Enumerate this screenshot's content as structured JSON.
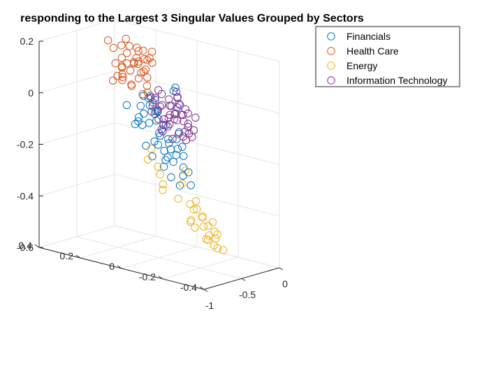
{
  "chart_data": {
    "type": "scatter",
    "title": "responding to the Largest 3 Singular Values Grouped by Sectors",
    "xlabel": "",
    "ylabel": "",
    "zlabel": "",
    "grid": true,
    "legend_placement": "top-right",
    "axes": {
      "x": {
        "range": [
          -1,
          0
        ],
        "ticks": [
          "-1",
          "-0.5",
          "0"
        ]
      },
      "y": {
        "range": [
          -0.4,
          0.4
        ],
        "ticks": [
          "-0.4",
          "-0.2",
          "0",
          "0.2",
          "0.4"
        ]
      },
      "z": {
        "range": [
          -0.6,
          0.2
        ],
        "ticks": [
          "-0.6",
          "-0.4",
          "-0.2",
          "0",
          "0.2"
        ]
      }
    },
    "series": [
      {
        "name": "Financials",
        "color": "#0072BD",
        "marker": "o",
        "points_xyz": [
          [
            -0.3,
            0.12,
            -0.05
          ],
          [
            -0.28,
            0.1,
            -0.07
          ],
          [
            -0.26,
            0.14,
            -0.03
          ],
          [
            -0.32,
            0.08,
            -0.1
          ],
          [
            -0.25,
            0.06,
            -0.12
          ],
          [
            -0.35,
            0.05,
            -0.15
          ],
          [
            -0.22,
            0.11,
            -0.08
          ],
          [
            -0.29,
            0.03,
            -0.18
          ],
          [
            -0.2,
            0.09,
            -0.13
          ],
          [
            -0.38,
            0.02,
            -0.2
          ],
          [
            -0.27,
            0.0,
            -0.16
          ],
          [
            -0.33,
            0.07,
            -0.06
          ],
          [
            -0.24,
            0.04,
            -0.21
          ],
          [
            -0.31,
            -0.02,
            -0.19
          ],
          [
            -0.36,
            0.1,
            -0.11
          ],
          [
            -0.21,
            0.01,
            -0.14
          ],
          [
            -0.4,
            0.06,
            -0.17
          ],
          [
            -0.26,
            -0.03,
            -0.22
          ],
          [
            -0.3,
            0.15,
            -0.02
          ],
          [
            -0.23,
            0.12,
            -0.09
          ],
          [
            -0.34,
            -0.01,
            -0.24
          ],
          [
            -0.28,
            0.05,
            -0.25
          ],
          [
            -0.37,
            0.08,
            -0.04
          ],
          [
            -0.19,
            0.07,
            -0.18
          ],
          [
            -0.42,
            0.03,
            -0.13
          ],
          [
            -0.25,
            -0.05,
            -0.28
          ],
          [
            -0.32,
            0.11,
            -0.01
          ],
          [
            -0.29,
            -0.04,
            -0.26
          ],
          [
            -0.22,
            0.02,
            -0.23
          ],
          [
            -0.35,
            0.13,
            -0.08
          ],
          [
            -0.27,
            0.09,
            -0.2
          ],
          [
            -0.31,
            0.16,
            -0.06
          ],
          [
            -0.24,
            -0.02,
            -0.3
          ],
          [
            -0.39,
            0.0,
            -0.22
          ],
          [
            -0.2,
            0.13,
            -0.04
          ],
          [
            -0.33,
            0.04,
            -0.27
          ],
          [
            -0.45,
            0.12,
            -0.1
          ],
          [
            -0.44,
            0.18,
            -0.05
          ],
          [
            -0.41,
            0.15,
            -0.12
          ],
          [
            -0.3,
            -0.08,
            -0.32
          ],
          [
            -0.15,
            0.05,
            0.02
          ],
          [
            -0.12,
            0.07,
            0.0
          ],
          [
            -0.18,
            0.03,
            -0.05
          ],
          [
            -0.48,
            -0.05,
            -0.28
          ],
          [
            -0.5,
            -0.1,
            -0.3
          ],
          [
            -0.26,
            0.17,
            -0.14
          ],
          [
            -0.36,
            -0.06,
            -0.17
          ],
          [
            -0.43,
            0.09,
            -0.19
          ],
          [
            -0.21,
            0.14,
            -0.26
          ],
          [
            -0.28,
            0.18,
            -0.11
          ]
        ]
      },
      {
        "name": "Health Care",
        "color": "#D95319",
        "marker": "o",
        "points_xyz": [
          [
            -0.2,
            0.25,
            0.05
          ],
          [
            -0.18,
            0.22,
            0.08
          ],
          [
            -0.22,
            0.28,
            0.02
          ],
          [
            -0.15,
            0.2,
            0.1
          ],
          [
            -0.25,
            0.18,
            0.06
          ],
          [
            -0.12,
            0.24,
            0.12
          ],
          [
            -0.28,
            0.26,
            0.04
          ],
          [
            -0.17,
            0.3,
            0.0
          ],
          [
            -0.23,
            0.21,
            0.11
          ],
          [
            -0.1,
            0.27,
            0.07
          ],
          [
            -0.3,
            0.23,
            0.09
          ],
          [
            -0.14,
            0.19,
            0.03
          ],
          [
            -0.26,
            0.31,
            0.13
          ],
          [
            -0.19,
            0.17,
            -0.02
          ],
          [
            -0.08,
            0.22,
            0.05
          ],
          [
            -0.32,
            0.2,
            0.01
          ],
          [
            -0.21,
            0.29,
            0.14
          ],
          [
            -0.16,
            0.26,
            -0.01
          ],
          [
            -0.27,
            0.16,
            0.07
          ],
          [
            -0.11,
            0.3,
            0.1
          ],
          [
            -0.24,
            0.24,
            0.15
          ],
          [
            -0.13,
            0.17,
            0.09
          ],
          [
            -0.29,
            0.28,
            0.03
          ],
          [
            -0.18,
            0.33,
            0.06
          ],
          [
            -0.22,
            0.15,
            0.12
          ],
          [
            -0.09,
            0.25,
            0.01
          ],
          [
            -0.34,
            0.24,
            0.08
          ],
          [
            -0.15,
            0.29,
            0.16
          ],
          [
            -0.2,
            0.19,
            -0.03
          ],
          [
            -0.26,
            0.27,
            0.1
          ],
          [
            -0.05,
            0.2,
            0.12
          ],
          [
            -0.03,
            0.23,
            0.08
          ],
          [
            -0.36,
            0.3,
            0.17
          ],
          [
            -0.12,
            0.32,
            0.04
          ],
          [
            -0.28,
            0.14,
            0.02
          ],
          [
            -0.17,
            0.23,
            0.14
          ],
          [
            -0.31,
            0.17,
            0.11
          ],
          [
            -0.07,
            0.28,
            0.06
          ],
          [
            -0.24,
            0.32,
            0.0
          ],
          [
            -0.14,
            0.21,
            0.13
          ]
        ]
      },
      {
        "name": "Energy",
        "color": "#EDB120",
        "marker": "o",
        "points_xyz": [
          [
            -0.2,
            -0.1,
            -0.45
          ],
          [
            -0.18,
            -0.12,
            -0.48
          ],
          [
            -0.22,
            -0.08,
            -0.42
          ],
          [
            -0.15,
            -0.14,
            -0.5
          ],
          [
            -0.25,
            -0.06,
            -0.47
          ],
          [
            -0.19,
            -0.16,
            -0.52
          ],
          [
            -0.23,
            -0.11,
            -0.44
          ],
          [
            -0.16,
            -0.09,
            -0.49
          ],
          [
            -0.21,
            -0.13,
            -0.53
          ],
          [
            -0.27,
            -0.07,
            -0.46
          ],
          [
            -0.14,
            -0.15,
            -0.51
          ],
          [
            -0.24,
            -0.17,
            -0.54
          ],
          [
            -0.18,
            -0.05,
            -0.43
          ],
          [
            -0.22,
            -0.18,
            -0.55
          ],
          [
            -0.3,
            -0.1,
            -0.48
          ],
          [
            -0.12,
            -0.12,
            -0.47
          ],
          [
            -0.26,
            -0.14,
            -0.52
          ],
          [
            -0.17,
            -0.19,
            -0.56
          ],
          [
            -0.2,
            -0.04,
            -0.41
          ],
          [
            -0.28,
            -0.16,
            -0.5
          ],
          [
            -0.35,
            0.05,
            -0.3
          ],
          [
            -0.4,
            0.02,
            -0.35
          ],
          [
            -0.3,
            0.08,
            -0.28
          ],
          [
            -0.25,
            -0.02,
            -0.33
          ],
          [
            -0.33,
            -0.03,
            -0.38
          ],
          [
            -0.15,
            -0.05,
            -0.4
          ],
          [
            -0.38,
            0.1,
            -0.25
          ],
          [
            -0.45,
            0.0,
            -0.32
          ],
          [
            -0.1,
            0.02,
            -0.3
          ],
          [
            -0.28,
            0.12,
            -0.22
          ]
        ]
      },
      {
        "name": "Information Technology",
        "color": "#7E2F8E",
        "marker": "o",
        "points_xyz": [
          [
            -0.15,
            0.05,
            -0.08
          ],
          [
            -0.12,
            0.08,
            -0.06
          ],
          [
            -0.18,
            0.03,
            -0.1
          ],
          [
            -0.1,
            0.1,
            -0.04
          ],
          [
            -0.2,
            0.06,
            -0.12
          ],
          [
            -0.08,
            0.04,
            -0.09
          ],
          [
            -0.14,
            0.12,
            -0.02
          ],
          [
            -0.16,
            0.0,
            -0.14
          ],
          [
            -0.11,
            0.07,
            -0.11
          ],
          [
            -0.22,
            0.09,
            -0.05
          ],
          [
            -0.06,
            0.11,
            -0.07
          ],
          [
            -0.19,
            0.02,
            -0.15
          ],
          [
            -0.13,
            0.14,
            -0.01
          ],
          [
            -0.09,
            0.01,
            -0.13
          ],
          [
            -0.17,
            0.13,
            -0.08
          ],
          [
            -0.24,
            0.05,
            -0.09
          ],
          [
            -0.07,
            0.07,
            -0.03
          ],
          [
            -0.12,
            -0.02,
            -0.16
          ],
          [
            -0.21,
            0.11,
            -0.11
          ],
          [
            -0.05,
            0.09,
            -0.1
          ],
          [
            -0.15,
            0.16,
            -0.06
          ],
          [
            -0.18,
            -0.01,
            -0.05
          ],
          [
            -0.1,
            0.03,
            -0.17
          ],
          [
            -0.23,
            0.14,
            -0.03
          ],
          [
            -0.04,
            0.05,
            -0.12
          ],
          [
            -0.14,
            0.09,
            -0.14
          ],
          [
            -0.2,
            -0.03,
            -0.1
          ],
          [
            -0.08,
            0.15,
            -0.08
          ],
          [
            -0.16,
            0.06,
            -0.18
          ],
          [
            -0.11,
            0.12,
            -0.12
          ],
          [
            -0.02,
            0.08,
            -0.06
          ],
          [
            0.0,
            0.1,
            -0.02
          ],
          [
            -0.01,
            0.04,
            -0.09
          ],
          [
            -0.06,
            0.14,
            -0.15
          ],
          [
            -0.13,
            -0.04,
            -0.08
          ],
          [
            -0.25,
            0.08,
            -0.14
          ],
          [
            -0.03,
            0.12,
            -0.11
          ],
          [
            -0.09,
            0.17,
            -0.05
          ],
          [
            -0.17,
            0.02,
            -0.04
          ],
          [
            -0.07,
            -0.01,
            -0.14
          ],
          [
            -0.19,
            0.15,
            -0.09
          ],
          [
            -0.12,
            0.05,
            -0.02
          ],
          [
            -0.05,
            0.02,
            -0.16
          ],
          [
            -0.21,
            0.0,
            -0.07
          ],
          [
            -0.1,
            0.13,
            -0.17
          ],
          [
            0.02,
            0.06,
            -0.2
          ]
        ]
      }
    ]
  }
}
